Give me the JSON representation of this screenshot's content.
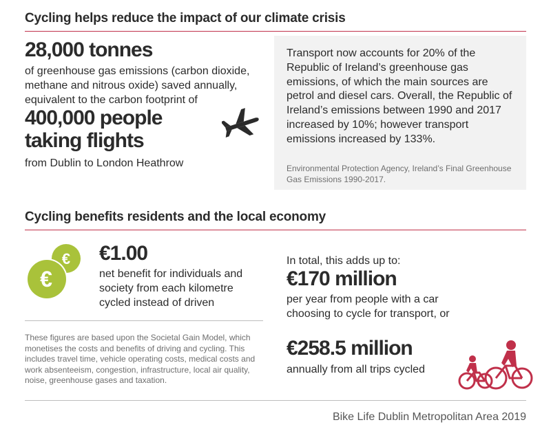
{
  "colors": {
    "accent": "#c0304a",
    "euro_green": "#a9c23a",
    "panel_bg": "#f2f2f2",
    "text": "#2b2b2b"
  },
  "icons": {
    "plane": "airplane-icon",
    "euro": "euro-coins-icon",
    "bikes": "family-cycling-icon"
  },
  "section1": {
    "heading": "Cycling helps reduce the impact of our climate crisis",
    "stat_big": "28,000 tonnes",
    "stat_desc": "of greenhouse gas emissions (carbon dioxide, methane and nitrous oxide) saved annually, equivalent to the carbon footprint of",
    "flights_big": "400,000 people taking flights",
    "flights_desc": "from Dublin to London Heathrow",
    "panel_text": "Transport now accounts for 20% of the Republic of Ireland’s greenhouse gas emissions, of which the main sources are petrol and diesel cars. Overall, the Republic of Ireland’s emissions between 1990 and 2017 increased by 10%; however transport emissions increased by 133%.",
    "panel_source": "Environmental Protection Agency, Ireland’s Final Greenhouse Gas Emissions 1990-2017."
  },
  "section2": {
    "heading": "Cycling benefits residents and the local economy",
    "euro_big": "€1.00",
    "euro_desc": "net benefit for individuals and society from each kilometre cycled instead of driven",
    "note": "These figures are based upon the Societal Gain Model, which monetises the costs and benefits of driving and cycling. This includes travel time, vehicle operating costs, medical costs and work absenteeism, congestion, infrastructure, local air quality, noise, greenhouse gases and taxation.",
    "total_intro": "In total, this adds up to:",
    "total1_big": "€170 million",
    "total1_desc": "per year from people with a car choosing to cycle for transport, or",
    "total2_big": "€258.5 million",
    "total2_desc": "annually from all trips cycled"
  },
  "footer": {
    "text": "Bike Life Dublin Metropolitan Area 2019"
  }
}
